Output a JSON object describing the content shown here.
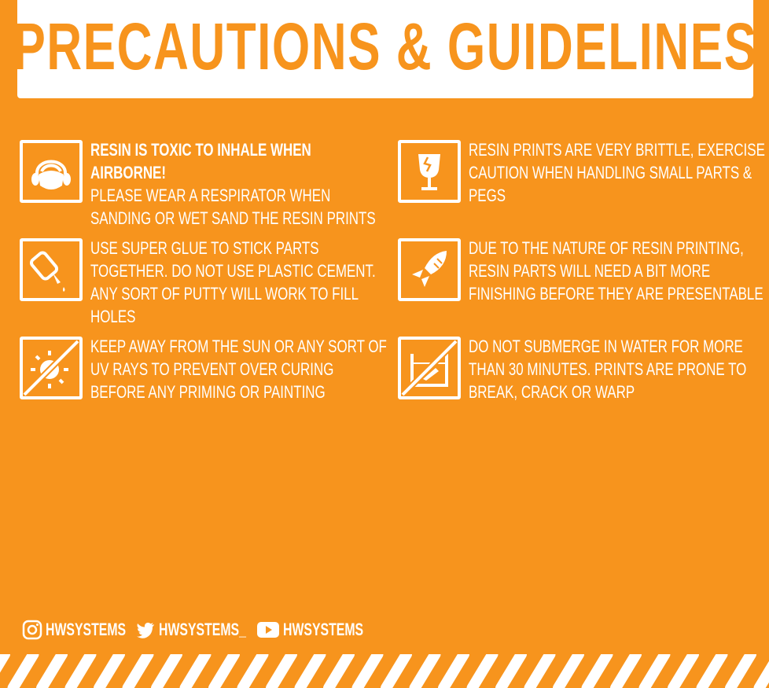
{
  "title": "PRECAUTIONS & GUIDELINES",
  "colors": {
    "background": "#F7941D",
    "foreground": "#FFFFFF"
  },
  "guidelines": [
    {
      "icon": "respirator-icon",
      "lead": "RESIN IS TOXIC TO INHALE WHEN AIRBORNE!",
      "text": "PLEASE WEAR A RESPIRATOR WHEN SANDING OR WET SAND THE RESIN PRINTS"
    },
    {
      "icon": "fragile-glass-icon",
      "lead": "",
      "text": "RESIN PRINTS ARE VERY BRITTLE, EXERCISE CAUTION WHEN HANDLING SMALL PARTS & PEGS"
    },
    {
      "icon": "glue-bottle-icon",
      "lead": "",
      "text": "USE SUPER GLUE TO STICK PARTS TOGETHER. DO NOT USE PLASTIC CEMENT. ANY SORT OF PUTTY WILL WORK TO FILL HOLES"
    },
    {
      "icon": "sanding-rocket-icon",
      "lead": "",
      "text": "DUE TO THE NATURE OF RESIN PRINTING, RESIN PARTS WILL NEED A BIT MORE FINISHING BEFORE THEY ARE PRESENTABLE"
    },
    {
      "icon": "no-sun-icon",
      "lead": "",
      "text": "KEEP AWAY FROM THE SUN OR ANY SORT OF UV RAYS TO PREVENT OVER CURING BEFORE ANY PRIMING OR PAINTING"
    },
    {
      "icon": "no-water-icon",
      "lead": "",
      "text": "DO NOT SUBMERGE IN WATER FOR MORE THAN 30 MINUTES. PRINTS ARE PRONE TO BREAK, CRACK OR WARP"
    }
  ],
  "social": [
    {
      "icon": "instagram-icon",
      "handle": "HWSYSTEMS"
    },
    {
      "icon": "twitter-icon",
      "handle": "HWSYSTEMS_"
    },
    {
      "icon": "youtube-icon",
      "handle": "HWSYSTEMS"
    }
  ]
}
